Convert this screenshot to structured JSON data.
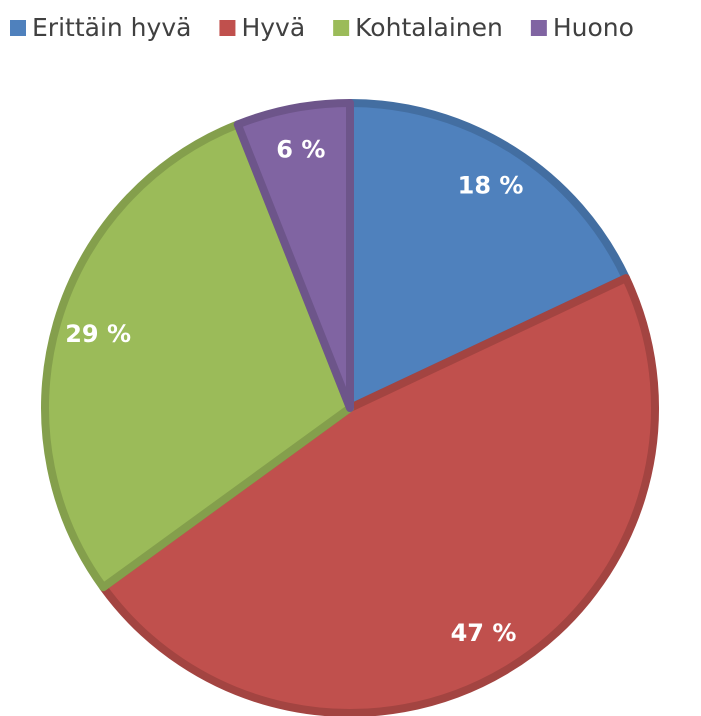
{
  "chart_data": {
    "type": "pie",
    "categories": [
      "Erittäin hyvä",
      "Hyvä",
      "Kohtalainen",
      "Huono"
    ],
    "values": [
      18,
      47,
      29,
      6
    ],
    "value_labels": [
      "18 %",
      "47 %",
      "29 %",
      "6 %"
    ],
    "colors": [
      "#4f81bd",
      "#c0504d",
      "#9bbb59",
      "#8064a2"
    ],
    "legend": "top"
  }
}
